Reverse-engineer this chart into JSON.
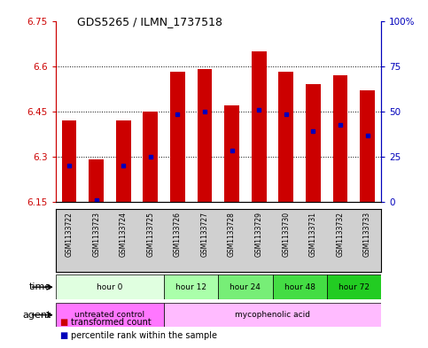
{
  "title": "GDS5265 / ILMN_1737518",
  "samples": [
    "GSM1133722",
    "GSM1133723",
    "GSM1133724",
    "GSM1133725",
    "GSM1133726",
    "GSM1133727",
    "GSM1133728",
    "GSM1133729",
    "GSM1133730",
    "GSM1133731",
    "GSM1133732",
    "GSM1133733"
  ],
  "bar_bottom": 6.15,
  "bar_tops": [
    6.42,
    6.29,
    6.42,
    6.45,
    6.58,
    6.59,
    6.47,
    6.65,
    6.58,
    6.54,
    6.57,
    6.52
  ],
  "blue_dot_values": [
    6.27,
    6.155,
    6.27,
    6.3,
    6.44,
    6.45,
    6.32,
    6.455,
    6.44,
    6.385,
    6.405,
    6.37
  ],
  "bar_color": "#cc0000",
  "blue_color": "#0000bb",
  "ylim": [
    6.15,
    6.75
  ],
  "yticks_left": [
    6.15,
    6.3,
    6.45,
    6.6,
    6.75
  ],
  "ytick_labels_left": [
    "6.15",
    "6.3",
    "6.45",
    "6.6",
    "6.75"
  ],
  "yticks_right_pct": [
    0,
    25,
    50,
    75,
    100
  ],
  "ytick_labels_right": [
    "0",
    "25",
    "50",
    "75",
    "100%"
  ],
  "grid_values": [
    6.3,
    6.45,
    6.6
  ],
  "time_groups": [
    {
      "label": "hour 0",
      "start": 0,
      "end": 4,
      "color": "#e0ffe0"
    },
    {
      "label": "hour 12",
      "start": 4,
      "end": 6,
      "color": "#aaffaa"
    },
    {
      "label": "hour 24",
      "start": 6,
      "end": 8,
      "color": "#77ee77"
    },
    {
      "label": "hour 48",
      "start": 8,
      "end": 10,
      "color": "#44dd44"
    },
    {
      "label": "hour 72",
      "start": 10,
      "end": 12,
      "color": "#22cc22"
    }
  ],
  "agent_groups": [
    {
      "label": "untreated control",
      "start": 0,
      "end": 4,
      "color": "#ff77ff"
    },
    {
      "label": "mycophenolic acid",
      "start": 4,
      "end": 12,
      "color": "#ffbbff"
    }
  ],
  "legend_red_label": "transformed count",
  "legend_blue_label": "percentile rank within the sample",
  "bar_width": 0.55,
  "left_tick_color": "#cc0000",
  "right_tick_color": "#0000bb"
}
